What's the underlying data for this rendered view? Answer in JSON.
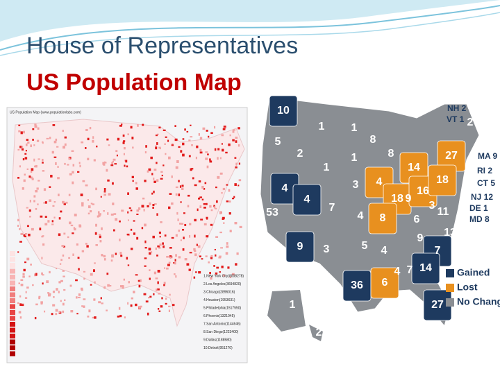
{
  "header": {
    "line1": "House of Representatives",
    "line2": "US Population Map"
  },
  "left_map": {
    "title": "US Population Map (www.populationlabs.com)",
    "cities": [
      "1.New York City(8008278)",
      "2.Los Angeles(3694820)",
      "3.Chicago(2896016)",
      "4.Houston(1953631)",
      "5.Philadelphia(1517550)",
      "6.Phoenix(1321045)",
      "7.San Antonio(1144646)",
      "8.San Diego(1223400)",
      "9.Dallas(1188580)",
      "10.Detroit(951270)"
    ]
  },
  "right_map": {
    "states": [
      {
        "label": "10",
        "color": "#1e3a5f"
      },
      {
        "label": "1",
        "color": "#8a8e93"
      },
      {
        "label": "1",
        "color": "#8a8e93"
      },
      {
        "label": "5",
        "color": "#8a8e93"
      },
      {
        "label": "2",
        "color": "#8a8e93"
      },
      {
        "label": "1",
        "color": "#8a8e93"
      },
      {
        "label": "1",
        "color": "#8a8e93"
      },
      {
        "label": "8",
        "color": "#8a8e93"
      },
      {
        "label": "8",
        "color": "#8a8e93"
      },
      {
        "label": "14",
        "color": "#e8901f"
      },
      {
        "label": "27",
        "color": "#e8901f"
      },
      {
        "label": "4",
        "color": "#1e3a5f"
      },
      {
        "label": "4",
        "color": "#1e3a5f"
      },
      {
        "label": "7",
        "color": "#8a8e93"
      },
      {
        "label": "3",
        "color": "#8a8e93"
      },
      {
        "label": "4",
        "color": "#e8901f"
      },
      {
        "label": "18",
        "color": "#e8901f"
      },
      {
        "label": "9",
        "color": "#8a8e93"
      },
      {
        "label": "16",
        "color": "#e8901f"
      },
      {
        "label": "18",
        "color": "#e8901f"
      },
      {
        "label": "53",
        "color": "#8a8e93"
      },
      {
        "label": "4",
        "color": "#8a8e93"
      },
      {
        "label": "8",
        "color": "#e8901f"
      },
      {
        "label": "6",
        "color": "#8a8e93"
      },
      {
        "label": "3",
        "color": "#8a8e93"
      },
      {
        "label": "11",
        "color": "#8a8e93"
      },
      {
        "label": "9",
        "color": "#1e3a5f"
      },
      {
        "label": "3",
        "color": "#8a8e93"
      },
      {
        "label": "5",
        "color": "#8a8e93"
      },
      {
        "label": "4",
        "color": "#8a8e93"
      },
      {
        "label": "9",
        "color": "#8a8e93"
      },
      {
        "label": "13",
        "color": "#8a8e93"
      },
      {
        "label": "7",
        "color": "#1e3a5f"
      },
      {
        "label": "36",
        "color": "#1e3a5f"
      },
      {
        "label": "4",
        "color": "#8a8e93"
      },
      {
        "label": "7",
        "color": "#8a8e93"
      },
      {
        "label": "14",
        "color": "#1e3a5f"
      },
      {
        "label": "6",
        "color": "#e8901f"
      },
      {
        "label": "27",
        "color": "#1e3a5f"
      },
      {
        "label": "1",
        "color": "#8a8e93"
      },
      {
        "label": "2",
        "color": "#8a8e93"
      },
      {
        "label": "2",
        "color": "#8a8e93"
      }
    ],
    "callouts": [
      "NH 2",
      "VT 1",
      "MA 9",
      "RI 2",
      "CT 5",
      "NJ 12",
      "DE 1",
      "MD 8"
    ],
    "legend": [
      {
        "label": "Gained",
        "color": "#1e3a5f"
      },
      {
        "label": "Lost",
        "color": "#e8901f"
      },
      {
        "label": "No Change",
        "color": "#8a8e93"
      }
    ]
  }
}
